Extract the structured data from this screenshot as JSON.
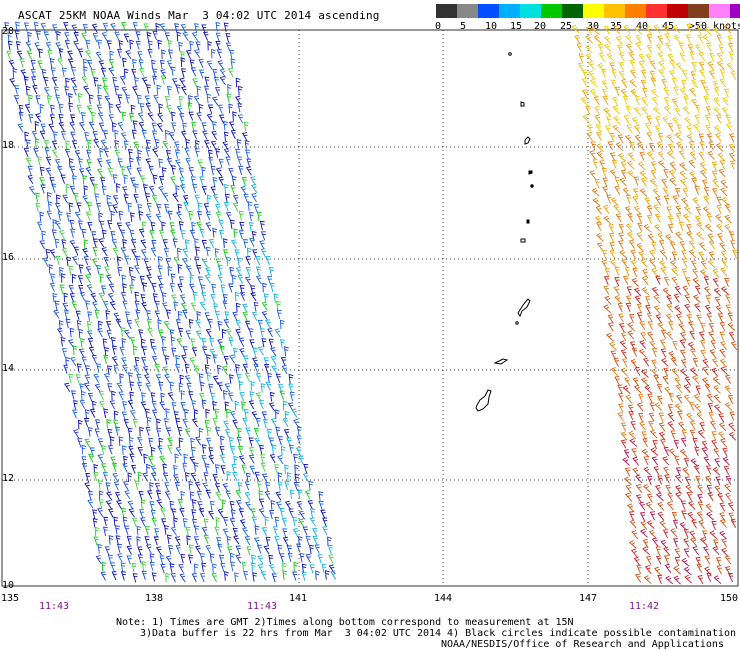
{
  "title": "ASCAT 25KM NOAA Winds Mar  3 04:02 UTC 2014 ascending",
  "legend": {
    "colors": [
      "#333333",
      "#888888",
      "#0050ff",
      "#00b0ff",
      "#00e0e0",
      "#00c800",
      "#006400",
      "#ffff00",
      "#ffc000",
      "#ff8000",
      "#ff3030",
      "#c00000",
      "#804020",
      "#ff80ff",
      "#a000c0",
      "#400080"
    ],
    "labels": [
      "0",
      "5",
      "10",
      "15",
      "20",
      "25",
      "30",
      "35",
      "40",
      "45",
      ">50 knots"
    ]
  },
  "axes": {
    "lat_labels": [
      "20",
      "18",
      "16",
      "14",
      "12",
      "10"
    ],
    "lon_labels": [
      "135",
      "138",
      "141",
      "144",
      "147",
      "150"
    ],
    "time_labels": [
      "11:43",
      "11:43",
      "11:42"
    ]
  },
  "notes": {
    "line1": "Note: 1) Times are GMT 2)Times along bottom correspond to measurement at 15N",
    "line2": "3)Data buffer is 22 hrs from Mar  3 04:02 UTC 2014 4) Black circles indicate possible contamination",
    "line3": "NOAA/NESDIS/Office of Research and Applications"
  },
  "swaths": {
    "west": {
      "colors": [
        "#0a10b0",
        "#1a3ad8",
        "#1a60e0",
        "#10b0e0",
        "#10c810",
        "#40d040"
      ]
    },
    "east": {
      "colors": [
        "#f0c800",
        "#f0a000",
        "#e07810",
        "#d05010",
        "#c82020",
        "#b01050"
      ]
    }
  }
}
